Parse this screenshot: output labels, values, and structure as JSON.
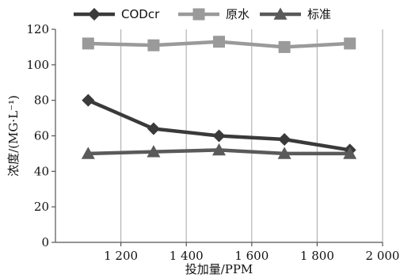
{
  "chart_data": {
    "type": "line",
    "xlabel": "投加量/PPM",
    "ylabel": "浓度/(MG·L⁻¹)",
    "xlim": [
      1000,
      2000
    ],
    "ylim": [
      0,
      120
    ],
    "x_ticks": [
      1200,
      1400,
      1600,
      1800,
      2000
    ],
    "x_tick_labels": [
      "1 200",
      "1 400",
      "1 600",
      "1 800",
      "2 000"
    ],
    "y_ticks": [
      0,
      20,
      40,
      60,
      80,
      100,
      120
    ],
    "y_tick_labels": [
      "0",
      "20",
      "40",
      "60",
      "80",
      "100",
      "120"
    ],
    "grid": "vertical",
    "legend_position": "top",
    "x": [
      1100,
      1300,
      1500,
      1700,
      1900
    ],
    "series": [
      {
        "name": "CODcr",
        "values": [
          80,
          64,
          60,
          58,
          52
        ],
        "color": "#3a3a3a",
        "marker": "diamond"
      },
      {
        "name": "原水",
        "values": [
          112,
          111,
          113,
          110,
          112
        ],
        "color": "#9a9a9a",
        "marker": "square"
      },
      {
        "name": "标准",
        "values": [
          50,
          51,
          52,
          50,
          50
        ],
        "color": "#5a5a5a",
        "marker": "triangle"
      }
    ]
  }
}
